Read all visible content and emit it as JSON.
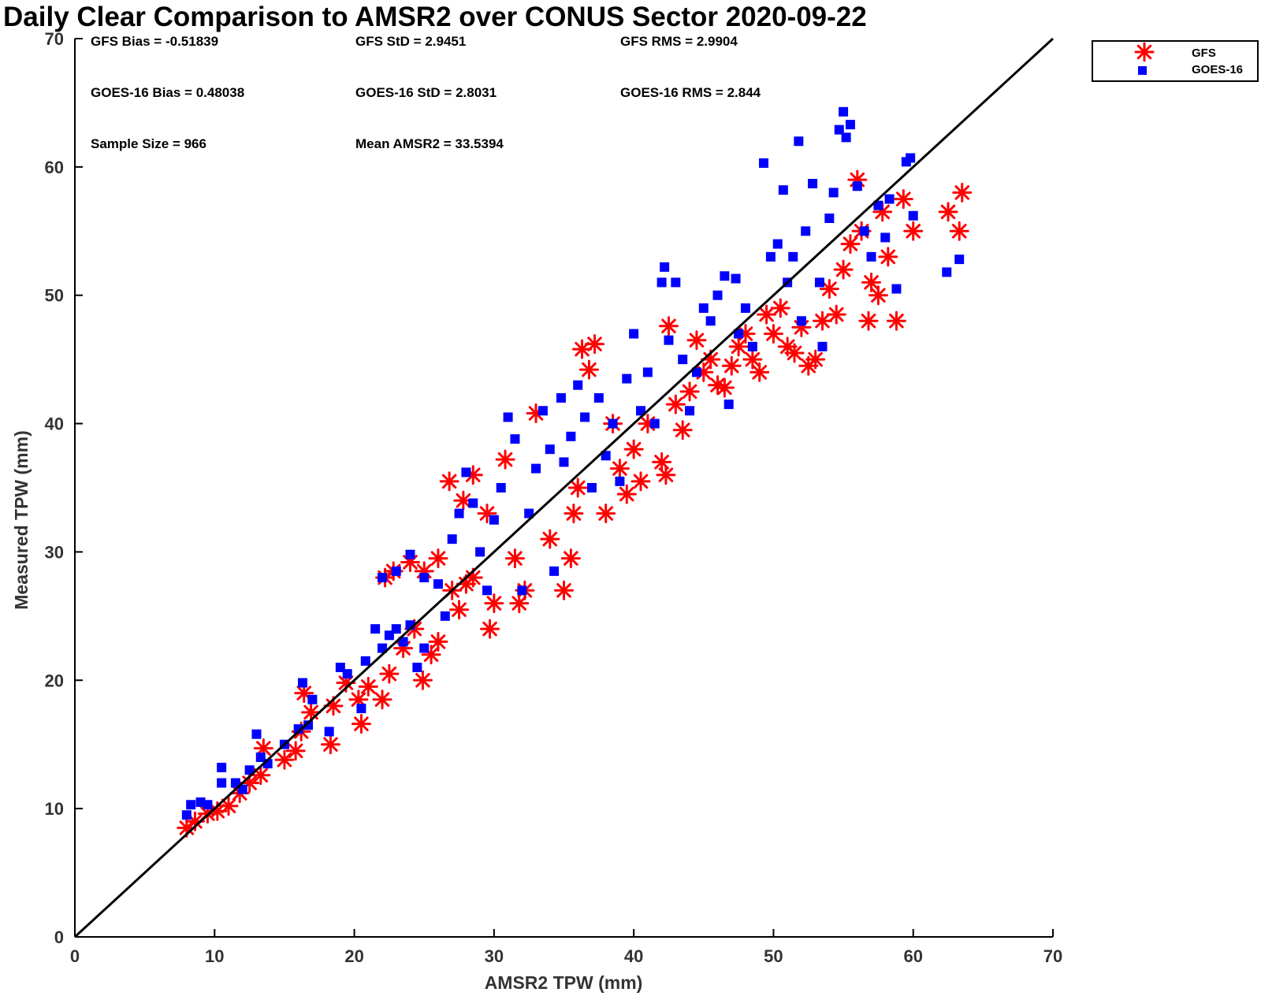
{
  "chart_data": {
    "type": "scatter",
    "title": "Daily Clear Comparison to AMSR2 over CONUS Sector 2020-09-22",
    "xlabel": "AMSR2 TPW (mm)",
    "ylabel": "Measured TPW (mm)",
    "xlim": [
      0,
      70
    ],
    "ylim": [
      0,
      70
    ],
    "xticks": [
      "0",
      "10",
      "20",
      "30",
      "40",
      "50",
      "60",
      "70"
    ],
    "yticks": [
      "0",
      "10",
      "20",
      "30",
      "40",
      "50",
      "60",
      "70"
    ],
    "legend_position": "outside-top-right",
    "reference_line": {
      "label": "1:1",
      "x": [
        0,
        70
      ],
      "y": [
        0,
        70
      ],
      "color": "#000000"
    },
    "stats": [
      "GFS Bias = -0.51839",
      "GFS StD = 2.9451",
      "GFS RMS = 2.9904",
      "GOES-16 Bias = 0.48038",
      "GOES-16 StD = 2.8031",
      "GOES-16 RMS = 2.844",
      "Sample Size = 966",
      "Mean AMSR2 = 33.5394"
    ],
    "series": [
      {
        "name": "GFS",
        "marker": "asterisk",
        "color": "#ff0000",
        "points": [
          [
            8,
            8.5
          ],
          [
            8.6,
            9
          ],
          [
            9.5,
            9.6
          ],
          [
            10.2,
            9.8
          ],
          [
            11,
            10.2
          ],
          [
            11.8,
            11.2
          ],
          [
            12.5,
            12
          ],
          [
            13.3,
            12.6
          ],
          [
            13.5,
            14.7
          ],
          [
            15,
            13.8
          ],
          [
            15.8,
            14.5
          ],
          [
            16.2,
            16
          ],
          [
            16.4,
            19
          ],
          [
            16.9,
            17.5
          ],
          [
            18.3,
            15
          ],
          [
            18.5,
            18
          ],
          [
            19.4,
            19.8
          ],
          [
            20.3,
            18.5
          ],
          [
            20.5,
            16.6
          ],
          [
            21,
            19.5
          ],
          [
            22,
            18.5
          ],
          [
            22.5,
            20.5
          ],
          [
            23.5,
            22.5
          ],
          [
            24.3,
            24
          ],
          [
            24.9,
            20
          ],
          [
            25.5,
            22
          ],
          [
            26,
            23
          ],
          [
            22.2,
            28
          ],
          [
            22.8,
            28.5
          ],
          [
            24,
            29.2
          ],
          [
            25,
            28.5
          ],
          [
            26,
            29.5
          ],
          [
            27,
            27
          ],
          [
            27.5,
            25.5
          ],
          [
            28,
            27.5
          ],
          [
            28.5,
            28
          ],
          [
            26.8,
            35.5
          ],
          [
            27.8,
            34
          ],
          [
            28.5,
            36
          ],
          [
            29.5,
            33
          ],
          [
            29.7,
            24
          ],
          [
            30,
            26
          ],
          [
            30.8,
            37.2
          ],
          [
            31.5,
            29.5
          ],
          [
            31.8,
            26
          ],
          [
            32.2,
            27
          ],
          [
            33,
            40.8
          ],
          [
            34,
            31
          ],
          [
            35,
            27
          ],
          [
            35.5,
            29.5
          ],
          [
            35.7,
            33
          ],
          [
            36,
            35
          ],
          [
            36.3,
            45.8
          ],
          [
            36.8,
            44.2
          ],
          [
            37.2,
            46.2
          ],
          [
            38,
            33
          ],
          [
            38.5,
            40
          ],
          [
            39,
            36.5
          ],
          [
            39.5,
            34.5
          ],
          [
            40,
            38
          ],
          [
            40.5,
            35.5
          ],
          [
            41,
            40
          ],
          [
            42,
            37
          ],
          [
            42.3,
            36
          ],
          [
            42.5,
            47.6
          ],
          [
            43,
            41.5
          ],
          [
            43.5,
            39.5
          ],
          [
            44,
            42.5
          ],
          [
            44.5,
            46.5
          ],
          [
            45,
            44
          ],
          [
            45.5,
            45
          ],
          [
            46,
            43
          ],
          [
            46.5,
            42.8
          ],
          [
            47,
            44.5
          ],
          [
            47.5,
            46
          ],
          [
            48,
            47
          ],
          [
            48.5,
            45
          ],
          [
            49,
            44
          ],
          [
            49.5,
            48.5
          ],
          [
            50,
            47
          ],
          [
            50.5,
            49
          ],
          [
            51,
            46
          ],
          [
            51.5,
            45.5
          ],
          [
            52,
            47.5
          ],
          [
            52.5,
            44.5
          ],
          [
            53,
            45
          ],
          [
            53.5,
            48
          ],
          [
            54,
            50.5
          ],
          [
            54.5,
            48.5
          ],
          [
            55,
            52
          ],
          [
            55.5,
            54
          ],
          [
            56,
            59
          ],
          [
            56.3,
            55
          ],
          [
            56.8,
            48
          ],
          [
            57,
            51
          ],
          [
            57.5,
            50
          ],
          [
            57.8,
            56.5
          ],
          [
            58.2,
            53
          ],
          [
            58.8,
            48
          ],
          [
            59.3,
            57.5
          ],
          [
            60,
            55
          ],
          [
            62.5,
            56.5
          ],
          [
            63.5,
            58
          ],
          [
            63.3,
            55
          ]
        ]
      },
      {
        "name": "GOES-16",
        "marker": "square",
        "color": "#0000ff",
        "points": [
          [
            8,
            9.5
          ],
          [
            8.3,
            10.3
          ],
          [
            9,
            10.5
          ],
          [
            9.5,
            10.3
          ],
          [
            10.5,
            13.2
          ],
          [
            10.5,
            12
          ],
          [
            11.5,
            12
          ],
          [
            12,
            11.5
          ],
          [
            12.5,
            13
          ],
          [
            13,
            15.8
          ],
          [
            13.3,
            14
          ],
          [
            13.8,
            13.5
          ],
          [
            15,
            15
          ],
          [
            16,
            16.2
          ],
          [
            16.3,
            19.8
          ],
          [
            16.7,
            16.5
          ],
          [
            17,
            18.5
          ],
          [
            18.2,
            16
          ],
          [
            19,
            21
          ],
          [
            19.5,
            20.5
          ],
          [
            20.5,
            17.8
          ],
          [
            20.8,
            21.5
          ],
          [
            21.5,
            24
          ],
          [
            22,
            22.5
          ],
          [
            22.5,
            23.5
          ],
          [
            23,
            24
          ],
          [
            23.5,
            23
          ],
          [
            24,
            24.3
          ],
          [
            24.5,
            21
          ],
          [
            25,
            22.5
          ],
          [
            22,
            28
          ],
          [
            23,
            28.5
          ],
          [
            24,
            29.8
          ],
          [
            25,
            28
          ],
          [
            26,
            27.5
          ],
          [
            26.5,
            25
          ],
          [
            27,
            31
          ],
          [
            27.5,
            33
          ],
          [
            28,
            36.2
          ],
          [
            28.5,
            33.8
          ],
          [
            29,
            30
          ],
          [
            29.5,
            27
          ],
          [
            30,
            32.5
          ],
          [
            30.5,
            35
          ],
          [
            31,
            40.5
          ],
          [
            31.5,
            38.8
          ],
          [
            32,
            27
          ],
          [
            32.5,
            33
          ],
          [
            33,
            36.5
          ],
          [
            33.5,
            41
          ],
          [
            34,
            38
          ],
          [
            34.3,
            28.5
          ],
          [
            34.8,
            42
          ],
          [
            35,
            37
          ],
          [
            35.5,
            39
          ],
          [
            36,
            43
          ],
          [
            36.5,
            40.5
          ],
          [
            37,
            35
          ],
          [
            37.5,
            42
          ],
          [
            38,
            37.5
          ],
          [
            38.5,
            40
          ],
          [
            39,
            35.5
          ],
          [
            39.5,
            43.5
          ],
          [
            40,
            47
          ],
          [
            40.5,
            41
          ],
          [
            41,
            44
          ],
          [
            41.5,
            40
          ],
          [
            42,
            51
          ],
          [
            42.2,
            52.2
          ],
          [
            42.5,
            46.5
          ],
          [
            43,
            51
          ],
          [
            43.5,
            45
          ],
          [
            44,
            41
          ],
          [
            44.5,
            44
          ],
          [
            45,
            49
          ],
          [
            45.5,
            48
          ],
          [
            46,
            50
          ],
          [
            46.5,
            51.5
          ],
          [
            46.8,
            41.5
          ],
          [
            47.3,
            51.3
          ],
          [
            47.5,
            47
          ],
          [
            48,
            49
          ],
          [
            48.5,
            46
          ],
          [
            49.3,
            60.3
          ],
          [
            49.8,
            53
          ],
          [
            50.3,
            54
          ],
          [
            50.7,
            58.2
          ],
          [
            51,
            51
          ],
          [
            51.4,
            53
          ],
          [
            51.8,
            62
          ],
          [
            52,
            48
          ],
          [
            52.3,
            55
          ],
          [
            52.8,
            58.7
          ],
          [
            53.3,
            51
          ],
          [
            53.5,
            46
          ],
          [
            54,
            56
          ],
          [
            54.3,
            58
          ],
          [
            54.7,
            62.9
          ],
          [
            55,
            64.3
          ],
          [
            55.2,
            62.3
          ],
          [
            55.5,
            63.3
          ],
          [
            56,
            58.5
          ],
          [
            56.5,
            55
          ],
          [
            57,
            53
          ],
          [
            57.5,
            57
          ],
          [
            58,
            54.5
          ],
          [
            58.3,
            57.5
          ],
          [
            58.8,
            50.5
          ],
          [
            59.5,
            60.4
          ],
          [
            59.8,
            60.7
          ],
          [
            60,
            56.2
          ],
          [
            62.4,
            51.8
          ],
          [
            63.3,
            52.8
          ]
        ]
      }
    ]
  }
}
